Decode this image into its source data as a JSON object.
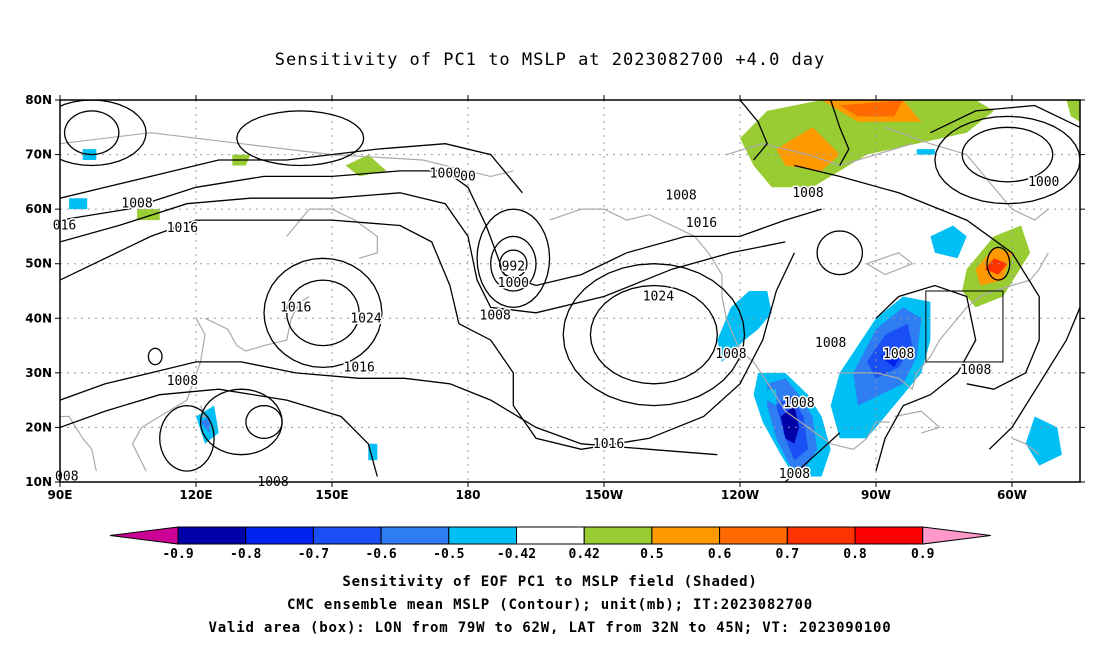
{
  "title": "Sensitivity of PC1 to MSLP at 2023082700 +4.0 day",
  "lat_labels": [
    "80N",
    "70N",
    "60N",
    "50N",
    "40N",
    "30N",
    "20N",
    "10N"
  ],
  "lon_labels": [
    "90E",
    "120E",
    "150E",
    "180",
    "150W",
    "120W",
    "90W",
    "60W"
  ],
  "contour_labels": [
    {
      "text": "1008",
      "lon": 107,
      "lat": 61
    },
    {
      "text": "016",
      "lon": 91,
      "lat": 57
    },
    {
      "text": "1016",
      "lon": 117,
      "lat": 56.5
    },
    {
      "text": "1000",
      "lon": 175,
      "lat": 66.5
    },
    {
      "text": "00",
      "lon": 180,
      "lat": 66
    },
    {
      "text": "992",
      "lon": 190,
      "lat": 49.5
    },
    {
      "text": "1000",
      "lon": 190,
      "lat": 46.5
    },
    {
      "text": "1008",
      "lon": 186,
      "lat": 40.5
    },
    {
      "text": "1024",
      "lon": 157.5,
      "lat": 40
    },
    {
      "text": "1016",
      "lon": 142,
      "lat": 42
    },
    {
      "text": "1016",
      "lon": 156,
      "lat": 31
    },
    {
      "text": "1008",
      "lon": 117,
      "lat": 28.5
    },
    {
      "text": "1016",
      "lon": 211,
      "lat": 17
    },
    {
      "text": "1024",
      "lon": 222,
      "lat": 44
    },
    {
      "text": "1008",
      "lon": 227,
      "lat": 62.5
    },
    {
      "text": "1016",
      "lon": 231.5,
      "lat": 57.5
    },
    {
      "text": "1008",
      "lon": 255,
      "lat": 63
    },
    {
      "text": "1008",
      "lon": 238,
      "lat": 33.5
    },
    {
      "text": "1008",
      "lon": 260,
      "lat": 35.5
    },
    {
      "text": "1008",
      "lon": 253,
      "lat": 24.5
    },
    {
      "text": "1008",
      "lon": 252,
      "lat": 11.5
    },
    {
      "text": "1008",
      "lon": 275,
      "lat": 33.5
    },
    {
      "text": "1008",
      "lon": 292,
      "lat": 30.5
    },
    {
      "text": "1000",
      "lon": 307,
      "lat": 65
    },
    {
      "text": "008",
      "lon": 91.5,
      "lat": 11
    },
    {
      "text": "1008",
      "lon": 137,
      "lat": 10
    }
  ],
  "colorbar": {
    "labels": [
      "-0.9",
      "-0.8",
      "-0.7",
      "-0.6",
      "-0.5",
      "-0.42",
      "0.42",
      "0.5",
      "0.6",
      "0.7",
      "0.8",
      "0.9"
    ],
    "colors": [
      "#0000a8",
      "#0022ee",
      "#1a4ff5",
      "#2e7df2",
      "#00bff5",
      "#ffffff",
      "#99cc33",
      "#ff9900",
      "#ff6a00",
      "#ff3300",
      "#ff0000"
    ],
    "low_end_color": "#cc0099",
    "high_end_color": "#ff99cc"
  },
  "valid_box": {
    "lon_min": -79,
    "lon_max": -62,
    "lat_min": 32,
    "lat_max": 45
  },
  "caption": {
    "line1": "Sensitivity of EOF PC1 to MSLP field (Shaded)",
    "line2": "CMC ensemble mean MSLP (Contour); unit(mb); IT:2023082700",
    "line3": "Valid area (box): LON from 79W to 62W, LAT from 32N to 45N; VT: 2023090100"
  }
}
